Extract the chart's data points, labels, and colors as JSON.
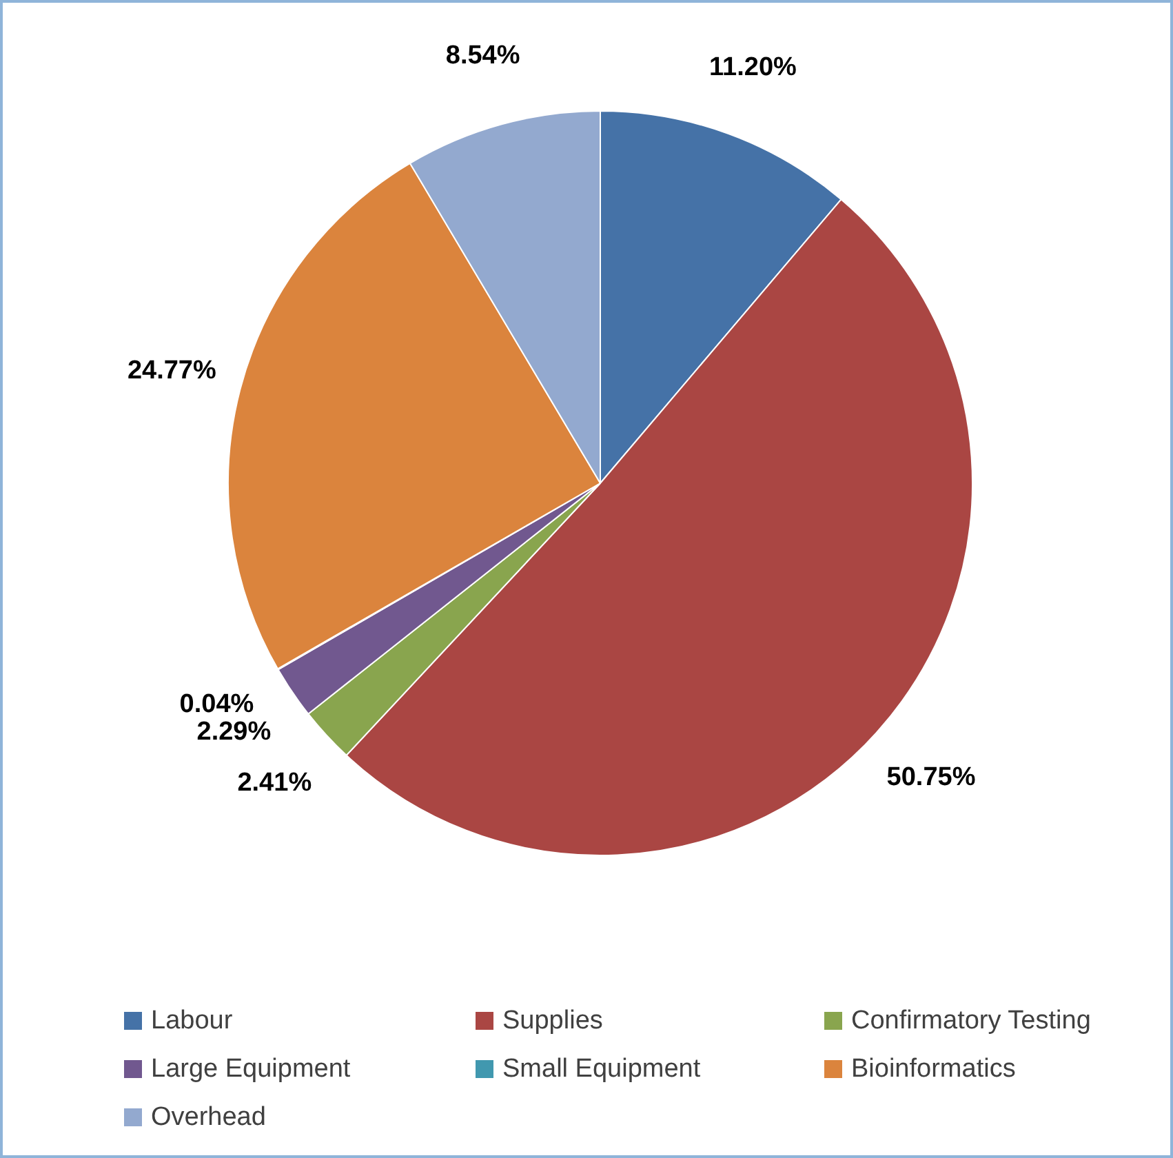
{
  "chart_data": {
    "type": "pie",
    "categories": [
      "Labour",
      "Supplies",
      "Confirmatory Testing",
      "Large Equipment",
      "Small Equipment",
      "Bioinformatics",
      "Overhead"
    ],
    "values": [
      11.2,
      50.75,
      2.41,
      2.29,
      0.04,
      24.77,
      8.54
    ],
    "colors": [
      "#4572a7",
      "#aa4643",
      "#89a54e",
      "#71588f",
      "#4198af",
      "#db843d",
      "#93a9cf"
    ],
    "value_labels": [
      "11.20%",
      "50.75%",
      "2.41%",
      "2.29%",
      "0.04%",
      "24.77%",
      "8.54%"
    ],
    "legend": "bottom"
  }
}
